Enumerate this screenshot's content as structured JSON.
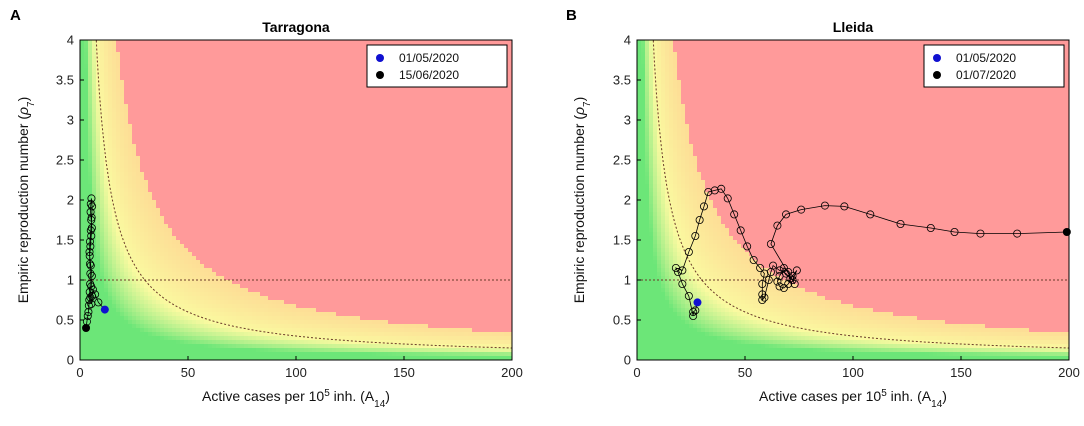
{
  "chart_data": [
    {
      "panel": "A",
      "type": "scatter",
      "title": "Tarragona",
      "xlabel_main": "Active cases per 10",
      "xlabel_sup": "5",
      "xlabel_tail": " inh. (A",
      "xlabel_sub": "14",
      "xlabel_close": ")",
      "ylabel_main": "Empiric reproduction number (",
      "ylabel_rho": "ρ",
      "ylabel_sub": "7",
      "ylabel_close": ")",
      "xlim": [
        0,
        200
      ],
      "ylim": [
        0,
        4
      ],
      "xticks": [
        0,
        50,
        100,
        150,
        200
      ],
      "yticks": [
        0,
        0.5,
        1,
        1.5,
        2,
        2.5,
        3,
        3.5,
        4
      ],
      "ytick_labels": [
        "0",
        "0.5",
        "1",
        "1.5",
        "2",
        "2.5",
        "3",
        "3.5",
        "4"
      ],
      "reference_line_y": 1,
      "legend": [
        {
          "label": "01/05/2020",
          "color": "#1010d0"
        },
        {
          "label": "15/06/2020",
          "color": "#000000"
        }
      ],
      "trajectory": [
        [
          11.5,
          0.63
        ],
        [
          8.5,
          0.72
        ],
        [
          7.0,
          0.82
        ],
        [
          6.0,
          0.88
        ],
        [
          5.5,
          0.8
        ],
        [
          5.2,
          0.7
        ],
        [
          4.8,
          0.78
        ],
        [
          5.2,
          0.92
        ],
        [
          5.5,
          1.05
        ],
        [
          5.0,
          1.18
        ],
        [
          4.5,
          1.3
        ],
        [
          4.8,
          1.42
        ],
        [
          5.2,
          1.55
        ],
        [
          5.5,
          1.65
        ],
        [
          5.2,
          1.75
        ],
        [
          4.9,
          1.85
        ],
        [
          5.0,
          1.95
        ],
        [
          5.3,
          2.02
        ],
        [
          5.6,
          1.92
        ],
        [
          5.4,
          1.78
        ],
        [
          5.0,
          1.62
        ],
        [
          4.6,
          1.48
        ],
        [
          4.4,
          1.35
        ],
        [
          4.6,
          1.2
        ],
        [
          4.8,
          1.08
        ],
        [
          4.7,
          0.95
        ],
        [
          4.5,
          0.85
        ],
        [
          4.3,
          0.75
        ],
        [
          4.1,
          0.68
        ],
        [
          3.9,
          0.6
        ],
        [
          3.6,
          0.55
        ],
        [
          3.2,
          0.48
        ],
        [
          2.8,
          0.4
        ]
      ]
    },
    {
      "panel": "B",
      "type": "scatter",
      "title": "Lleida",
      "xlabel_main": "Active cases per 10",
      "xlabel_sup": "5",
      "xlabel_tail": " inh. (A",
      "xlabel_sub": "14",
      "xlabel_close": ")",
      "ylabel_main": "Empiric reproduction number (",
      "ylabel_rho": "ρ",
      "ylabel_sub": "7",
      "ylabel_close": ")",
      "xlim": [
        0,
        200
      ],
      "ylim": [
        0,
        4
      ],
      "xticks": [
        0,
        50,
        100,
        150,
        200
      ],
      "yticks": [
        0,
        0.5,
        1,
        1.5,
        2,
        2.5,
        3,
        3.5,
        4
      ],
      "ytick_labels": [
        "0",
        "0.5",
        "1",
        "1.5",
        "2",
        "2.5",
        "3",
        "3.5",
        "4"
      ],
      "reference_line_y": 1,
      "legend": [
        {
          "label": "01/05/2020",
          "color": "#1010d0"
        },
        {
          "label": "01/07/2020",
          "color": "#000000"
        }
      ],
      "trajectory": [
        [
          28,
          0.72
        ],
        [
          27,
          0.62
        ],
        [
          26,
          0.6
        ],
        [
          26,
          0.55
        ],
        [
          24,
          0.8
        ],
        [
          21,
          0.95
        ],
        [
          19,
          1.1
        ],
        [
          18,
          1.15
        ],
        [
          21,
          1.12
        ],
        [
          24,
          1.35
        ],
        [
          27,
          1.55
        ],
        [
          29,
          1.75
        ],
        [
          31,
          1.92
        ],
        [
          33,
          2.1
        ],
        [
          36,
          2.12
        ],
        [
          39,
          2.14
        ],
        [
          42,
          2.02
        ],
        [
          45,
          1.82
        ],
        [
          48,
          1.62
        ],
        [
          51,
          1.42
        ],
        [
          54,
          1.25
        ],
        [
          57,
          1.15
        ],
        [
          59,
          1.08
        ],
        [
          58,
          0.95
        ],
        [
          58,
          0.82
        ],
        [
          58,
          0.75
        ],
        [
          59,
          0.78
        ],
        [
          61,
          1.0
        ],
        [
          62,
          1.1
        ],
        [
          63,
          1.18
        ],
        [
          66,
          1.12
        ],
        [
          69,
          1.08
        ],
        [
          71,
          1.02
        ],
        [
          70,
          1.1
        ],
        [
          68,
          1.15
        ],
        [
          66,
          1.05
        ],
        [
          65,
          0.98
        ],
        [
          66,
          0.92
        ],
        [
          68,
          0.9
        ],
        [
          70,
          0.95
        ],
        [
          72,
          1.05
        ],
        [
          74,
          1.12
        ],
        [
          72,
          1.0
        ],
        [
          73,
          0.95
        ],
        [
          62,
          1.45
        ],
        [
          65,
          1.68
        ],
        [
          69,
          1.82
        ],
        [
          76,
          1.88
        ],
        [
          87,
          1.93
        ],
        [
          96,
          1.92
        ],
        [
          108,
          1.82
        ],
        [
          122,
          1.7
        ],
        [
          136,
          1.65
        ],
        [
          147,
          1.6
        ],
        [
          159,
          1.58
        ],
        [
          176,
          1.58
        ],
        [
          199,
          1.6
        ]
      ]
    }
  ]
}
